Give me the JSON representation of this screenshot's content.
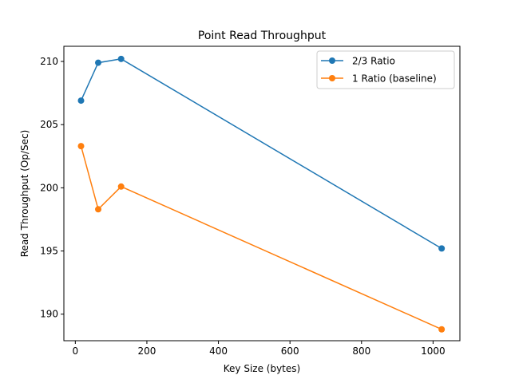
{
  "chart_data": {
    "type": "line",
    "title": "Point Read Throughput",
    "xlabel": "Key Size (bytes)",
    "ylabel": "Read Throughput (Op/Sec)",
    "xlim": [
      -32,
      1075
    ],
    "ylim": [
      187.9,
      211.2
    ],
    "xticks": [
      0,
      200,
      400,
      600,
      800,
      1000
    ],
    "yticks": [
      190,
      195,
      200,
      205,
      210
    ],
    "legend_position": "upper right",
    "grid": false,
    "x": [
      16,
      64,
      128,
      1024
    ],
    "series": [
      {
        "name": "2/3 Ratio",
        "color": "#1f77b4",
        "values": [
          206.9,
          209.9,
          210.2,
          195.2
        ]
      },
      {
        "name": "1 Ratio (baseline)",
        "color": "#ff7f0e",
        "values": [
          203.3,
          198.3,
          200.1,
          188.8
        ]
      }
    ]
  }
}
